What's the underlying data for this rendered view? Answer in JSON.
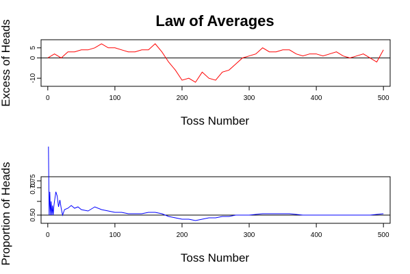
{
  "title": "Law of Averages",
  "chart_data": [
    {
      "type": "line",
      "ylabel": "Excess of Heads",
      "xlabel": "Toss Number",
      "xlim": [
        -10,
        510
      ],
      "ylim": [
        -14,
        9
      ],
      "xticks": [
        0,
        100,
        200,
        300,
        400,
        500
      ],
      "yticks": [
        -10,
        0,
        5
      ],
      "reference_y": 0,
      "grid": false,
      "series": [
        {
          "color": "#ff0000",
          "x": [
            0,
            10,
            20,
            30,
            40,
            50,
            60,
            70,
            80,
            90,
            100,
            110,
            120,
            130,
            140,
            150,
            160,
            170,
            180,
            190,
            200,
            210,
            220,
            230,
            240,
            250,
            260,
            270,
            280,
            290,
            300,
            310,
            320,
            330,
            340,
            350,
            360,
            370,
            380,
            390,
            400,
            410,
            420,
            430,
            440,
            450,
            460,
            470,
            480,
            490,
            500
          ],
          "y": [
            0,
            2,
            0,
            3,
            3,
            4,
            4,
            5,
            7,
            5,
            5,
            4,
            3,
            3,
            4,
            4,
            7,
            3,
            -2,
            -6,
            -11,
            -10,
            -12,
            -7,
            -10,
            -11,
            -7,
            -6,
            -3,
            0,
            1,
            2,
            5,
            3,
            3,
            4,
            4,
            2,
            1,
            2,
            2,
            1,
            2,
            3,
            1,
            0,
            1,
            2,
            0,
            -2,
            4
          ]
        }
      ]
    },
    {
      "type": "line",
      "ylabel": "Proportion of Heads",
      "xlabel": "Toss Number",
      "xlim": [
        -10,
        510
      ],
      "ylim": [
        0.44,
        0.78
      ],
      "xticks": [
        0,
        100,
        200,
        300,
        400,
        500
      ],
      "yticks": [
        0.5,
        0.6,
        0.7
      ],
      "ytick_labels": [
        "0.50",
        "",
        "0.70"
      ],
      "extra_ytick_label": "0.75",
      "reference_y": 0.5,
      "grid": false,
      "series": [
        {
          "color": "#0000ff",
          "x": [
            1,
            2,
            3,
            4,
            5,
            6,
            7,
            8,
            9,
            10,
            12,
            14,
            16,
            18,
            20,
            22,
            25,
            30,
            35,
            40,
            45,
            50,
            60,
            70,
            80,
            90,
            100,
            110,
            120,
            130,
            140,
            150,
            160,
            170,
            180,
            190,
            200,
            210,
            220,
            230,
            240,
            250,
            260,
            270,
            280,
            290,
            300,
            320,
            340,
            360,
            380,
            400,
            420,
            440,
            460,
            480,
            500
          ],
          "y": [
            1.0,
            0.5,
            0.67,
            0.5,
            0.6,
            0.5,
            0.57,
            0.5,
            0.56,
            0.6,
            0.67,
            0.64,
            0.56,
            0.61,
            0.55,
            0.5,
            0.54,
            0.55,
            0.57,
            0.55,
            0.56,
            0.54,
            0.53,
            0.56,
            0.54,
            0.53,
            0.52,
            0.52,
            0.51,
            0.51,
            0.51,
            0.52,
            0.52,
            0.51,
            0.49,
            0.48,
            0.47,
            0.47,
            0.46,
            0.47,
            0.48,
            0.48,
            0.49,
            0.49,
            0.5,
            0.5,
            0.5,
            0.51,
            0.51,
            0.51,
            0.5,
            0.5,
            0.5,
            0.5,
            0.5,
            0.5,
            0.51
          ]
        }
      ]
    }
  ]
}
